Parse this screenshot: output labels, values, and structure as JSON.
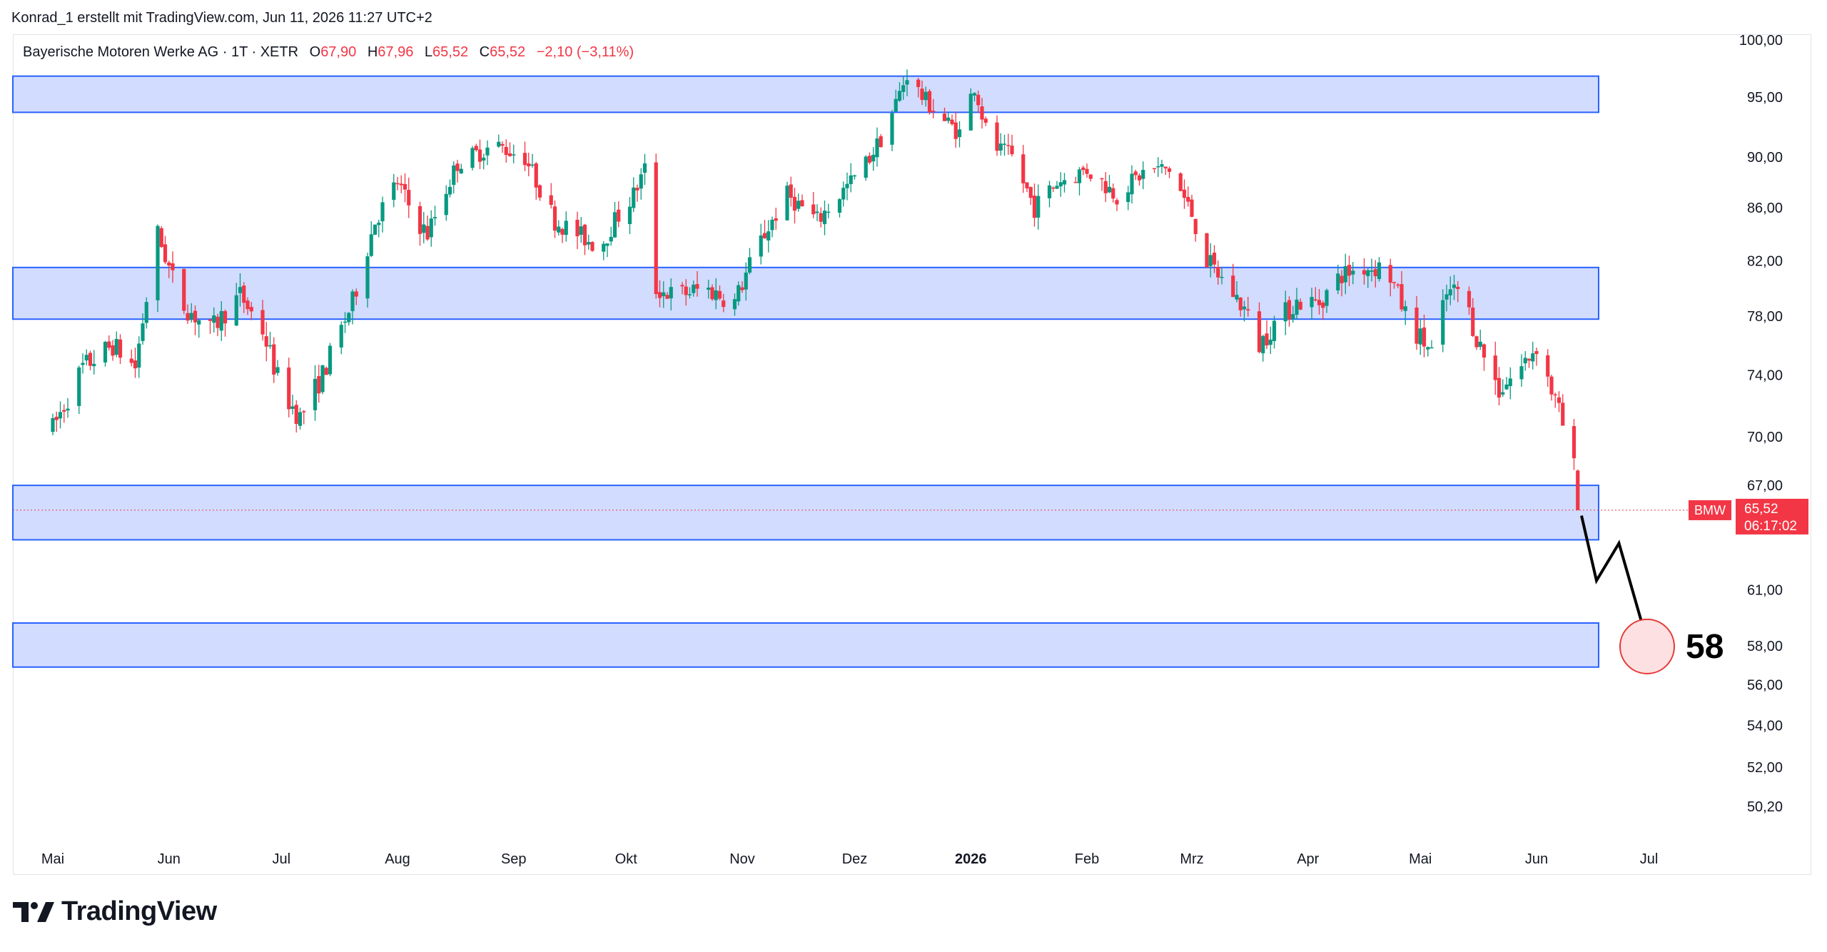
{
  "header": {
    "attribution": "Konrad_1 erstellt mit TradingView.com, Jun 11, 2026 11:27 UTC+2"
  },
  "legend": {
    "symbol": "Bayerische Motoren Werke AG · 1T · XETR",
    "o_label": "O",
    "o_value": "67,90",
    "h_label": "H",
    "h_value": "67,96",
    "l_label": "L",
    "l_value": "65,52",
    "c_label": "C",
    "c_value": "65,52",
    "change": "−2,10 (−3,11%)"
  },
  "price_tag": {
    "ticker": "BMW",
    "price": "65,52",
    "countdown": "06:17:02"
  },
  "target": {
    "label": "58"
  },
  "logo": {
    "text": "TradingView"
  },
  "colors": {
    "up": "#089981",
    "down": "#f23645",
    "zone_fill": "#d1dcff",
    "zone_border": "#2962ff",
    "target_fill": "#fde0e2",
    "target_border": "#e53935"
  },
  "chart_data": {
    "type": "candlestick",
    "title": "Bayerische Motoren Werke AG · 1T · XETR",
    "price_axis": {
      "scale": "log",
      "ticks": [
        "100,00",
        "95,00",
        "90,00",
        "86,00",
        "82,00",
        "78,00",
        "74,00",
        "70,00",
        "67,00",
        "61,00",
        "58,00",
        "56,00",
        "54,00",
        "52,00",
        "50,20"
      ],
      "tick_values": [
        100,
        95,
        90,
        86,
        82,
        78,
        74,
        70,
        67,
        61,
        58,
        56,
        54,
        52,
        50.2
      ],
      "range": [
        49.2,
        102
      ]
    },
    "time_axis": {
      "labels": [
        "Mai",
        "Jun",
        "Jul",
        "Aug",
        "Sep",
        "Okt",
        "Nov",
        "Dez",
        "2026",
        "Feb",
        "Mrz",
        "Apr",
        "Mai",
        "Jun",
        "Jul"
      ],
      "label_days": [
        0,
        31,
        61,
        92,
        123,
        153,
        184,
        214,
        245,
        276,
        304,
        335,
        365,
        396,
        426
      ],
      "bold": [
        "2026"
      ]
    },
    "last_price": 65.52,
    "zones": [
      {
        "from": 93.7,
        "to": 96.8
      },
      {
        "from": 77.8,
        "to": 81.5
      },
      {
        "from": 63.8,
        "to": 67.0
      },
      {
        "from": 56.9,
        "to": 59.2
      }
    ],
    "projection": [
      {
        "day": 408,
        "price": 65.2
      },
      {
        "day": 412,
        "price": 61.5
      },
      {
        "day": 418,
        "price": 63.6
      },
      {
        "day": 426,
        "price": 57.9
      }
    ],
    "target_price": 58,
    "path_days": [
      0,
      8,
      16,
      22,
      28,
      34,
      42,
      50,
      56,
      61,
      66,
      72,
      80,
      86,
      92,
      97,
      100,
      108,
      118,
      126,
      134,
      140,
      146,
      150,
      155,
      158,
      160,
      166,
      174,
      182,
      188,
      196,
      204,
      210,
      216,
      222,
      228,
      232,
      238,
      242,
      246,
      250,
      256,
      262,
      268,
      276,
      284,
      292,
      298,
      304,
      308,
      314,
      318,
      322,
      326,
      332,
      338,
      344,
      350,
      356,
      362,
      368,
      372,
      376,
      380,
      386,
      392,
      396,
      400,
      404,
      406
    ],
    "path_prices": [
      70.5,
      74.5,
      76,
      74.5,
      84,
      79,
      77,
      79.5,
      77,
      73,
      71.2,
      74,
      79,
      85,
      88,
      85,
      84,
      89.5,
      91,
      90,
      85,
      84,
      83,
      85,
      87,
      89,
      80,
      79.5,
      80,
      79,
      83,
      87,
      85,
      87,
      89,
      92,
      97,
      95,
      93,
      92,
      96,
      91,
      90,
      86,
      88,
      89,
      87,
      89,
      89,
      85.5,
      82,
      80,
      78.5,
      76,
      77.5,
      79,
      79,
      81,
      81.5,
      81.5,
      77.5,
      75.5,
      79.5,
      80,
      76.5,
      73,
      74.5,
      76,
      73,
      70,
      68
    ]
  }
}
